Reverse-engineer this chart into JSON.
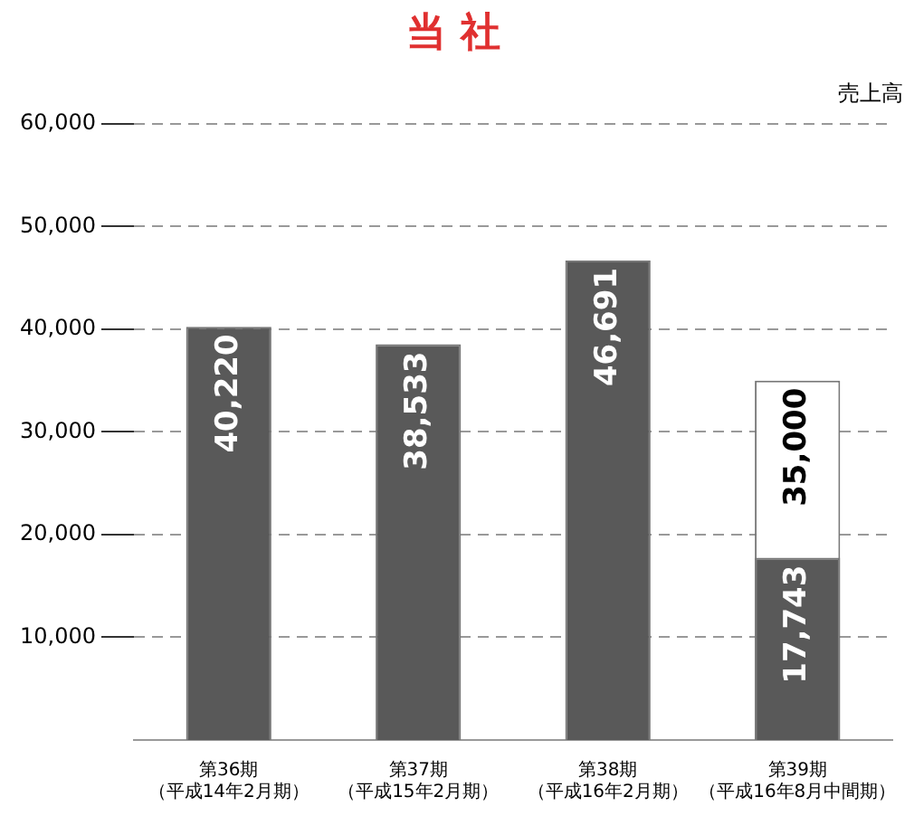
{
  "chart_data": {
    "type": "bar",
    "title": "当 社",
    "ylabel": "売上高",
    "categories": [
      "第36期（平成14年2月期）",
      "第37期（平成15年2月期）",
      "第38期（平成16年2月期）",
      "第39期（平成16年8月中間期）"
    ],
    "series": [
      {
        "color": "#595959",
        "values": [
          40220,
          38533,
          46691,
          17743
        ],
        "value_labels": [
          "40,220",
          "38,533",
          "46,691",
          "17,743"
        ]
      },
      {
        "color": "#ffffff",
        "values": [
          null,
          null,
          null,
          35000
        ],
        "value_labels": [
          null,
          null,
          null,
          "35,000"
        ]
      }
    ],
    "ylim": [
      0,
      60000
    ],
    "yticks": [
      {
        "value": 10000,
        "label": "10,000"
      },
      {
        "value": 20000,
        "label": "20,000"
      },
      {
        "value": 30000,
        "label": "30,000"
      },
      {
        "value": 40000,
        "label": "40,000"
      },
      {
        "value": 50000,
        "label": "50,000"
      },
      {
        "value": 60000,
        "label": "60,000"
      }
    ],
    "grid": "y",
    "legend": false
  }
}
